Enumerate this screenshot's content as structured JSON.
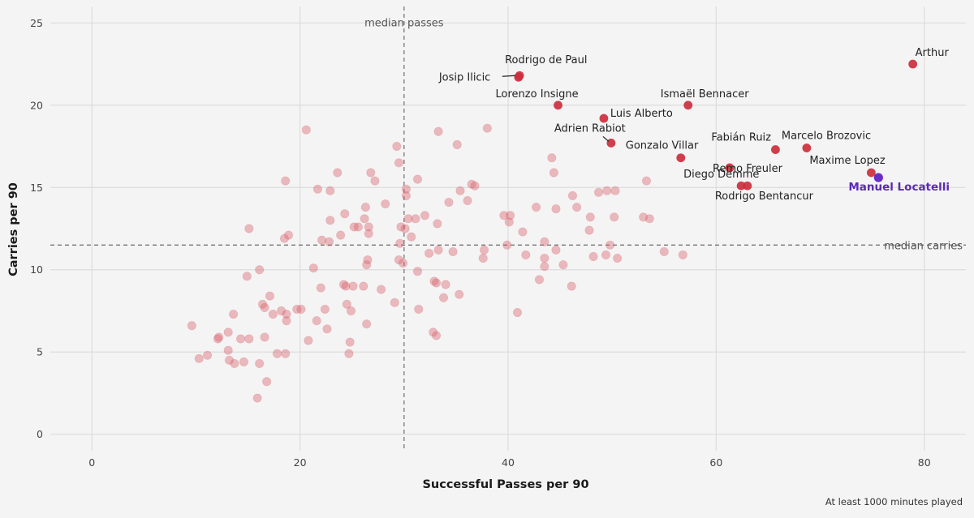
{
  "chart_data": {
    "type": "scatter",
    "xlabel": "Successful Passes per 90",
    "ylabel": "Carries per 90",
    "caption": "At least 1000 minutes played",
    "xlim": [
      -4,
      84
    ],
    "ylim": [
      -1,
      26
    ],
    "xticks": [
      0,
      20,
      40,
      60,
      80
    ],
    "yticks": [
      0,
      5,
      10,
      15,
      20,
      25
    ],
    "grid": true,
    "median_passes": {
      "value": 30,
      "label": "median passes"
    },
    "median_carries": {
      "value": 11.5,
      "label": "median carries"
    },
    "colors": {
      "background": "#f4f4f4",
      "others": "#d9646e",
      "labelled": "#cc2e3c",
      "highlight": "#6a2ec8"
    },
    "labelled_points": [
      {
        "name": "Arthur",
        "x": 78.9,
        "y": 22.5
      },
      {
        "name": "Rodrigo de Paul",
        "x": 41.1,
        "y": 21.8
      },
      {
        "name": "Josip Ilicic",
        "x": 41.0,
        "y": 21.7
      },
      {
        "name": "Lorenzo Insigne",
        "x": 44.8,
        "y": 20.0
      },
      {
        "name": "Ismaël Bennacer",
        "x": 57.3,
        "y": 20.0
      },
      {
        "name": "Luis Alberto",
        "x": 49.2,
        "y": 19.2
      },
      {
        "name": "Adrien Rabiot",
        "x": 49.9,
        "y": 17.7
      },
      {
        "name": "Gonzalo Villar",
        "x": 56.6,
        "y": 16.8
      },
      {
        "name": "Fabián Ruiz",
        "x": 65.7,
        "y": 17.3
      },
      {
        "name": "Marcelo Brozovic",
        "x": 68.7,
        "y": 17.4
      },
      {
        "name": "Remo Freuler",
        "x": 61.3,
        "y": 16.2
      },
      {
        "name": "Maxime Lopez",
        "x": 74.9,
        "y": 15.9
      },
      {
        "name": "Diego Demme",
        "x": 62.4,
        "y": 15.1
      },
      {
        "name": "Rodrigo Bentancur",
        "x": 63.0,
        "y": 15.1
      }
    ],
    "highlight_point": {
      "name": "Manuel Locatelli",
      "x": 75.6,
      "y": 15.6
    },
    "other_points": [
      [
        9.6,
        6.6
      ],
      [
        10.3,
        4.6
      ],
      [
        11.1,
        4.8
      ],
      [
        12.1,
        5.8
      ],
      [
        12.2,
        5.9
      ],
      [
        13.1,
        5.1
      ],
      [
        13.1,
        6.2
      ],
      [
        13.2,
        4.5
      ],
      [
        13.6,
        7.3
      ],
      [
        13.7,
        4.3
      ],
      [
        14.3,
        5.8
      ],
      [
        14.6,
        4.4
      ],
      [
        14.9,
        9.6
      ],
      [
        15.1,
        5.8
      ],
      [
        15.1,
        12.5
      ],
      [
        15.9,
        2.2
      ],
      [
        16.1,
        4.3
      ],
      [
        16.1,
        10.0
      ],
      [
        16.4,
        7.9
      ],
      [
        16.6,
        7.7
      ],
      [
        16.6,
        5.9
      ],
      [
        16.8,
        3.2
      ],
      [
        17.1,
        8.4
      ],
      [
        17.4,
        7.3
      ],
      [
        17.8,
        4.9
      ],
      [
        18.2,
        7.5
      ],
      [
        18.5,
        11.9
      ],
      [
        18.6,
        4.9
      ],
      [
        18.6,
        15.4
      ],
      [
        18.7,
        7.3
      ],
      [
        18.9,
        12.1
      ],
      [
        18.7,
        6.9
      ],
      [
        19.7,
        7.6
      ],
      [
        20.1,
        7.6
      ],
      [
        20.6,
        18.5
      ],
      [
        20.8,
        5.7
      ],
      [
        21.3,
        10.1
      ],
      [
        21.6,
        6.9
      ],
      [
        21.7,
        14.9
      ],
      [
        22.0,
        8.9
      ],
      [
        22.1,
        11.8
      ],
      [
        22.4,
        7.6
      ],
      [
        22.6,
        6.4
      ],
      [
        22.8,
        11.7
      ],
      [
        22.9,
        14.8
      ],
      [
        22.9,
        13.0
      ],
      [
        23.6,
        15.9
      ],
      [
        23.9,
        12.1
      ],
      [
        24.2,
        9.1
      ],
      [
        24.3,
        13.4
      ],
      [
        24.4,
        9.0
      ],
      [
        24.5,
        7.9
      ],
      [
        24.7,
        4.9
      ],
      [
        24.8,
        5.6
      ],
      [
        24.9,
        7.5
      ],
      [
        25.1,
        9.0
      ],
      [
        25.2,
        12.6
      ],
      [
        25.6,
        12.6
      ],
      [
        26.1,
        9.0
      ],
      [
        26.2,
        13.1
      ],
      [
        26.3,
        13.8
      ],
      [
        26.5,
        10.6
      ],
      [
        26.4,
        10.3
      ],
      [
        26.4,
        6.7
      ],
      [
        26.6,
        12.2
      ],
      [
        26.6,
        12.6
      ],
      [
        26.8,
        15.9
      ],
      [
        27.2,
        15.4
      ],
      [
        27.8,
        8.8
      ],
      [
        28.2,
        14.0
      ],
      [
        29.1,
        8.0
      ],
      [
        29.3,
        17.5
      ],
      [
        29.5,
        16.5
      ],
      [
        29.5,
        10.6
      ],
      [
        29.6,
        11.6
      ],
      [
        29.7,
        12.6
      ],
      [
        29.9,
        10.4
      ],
      [
        30.1,
        12.5
      ],
      [
        30.2,
        14.5
      ],
      [
        30.2,
        14.9
      ],
      [
        30.4,
        13.1
      ],
      [
        30.7,
        12.0
      ],
      [
        31.1,
        13.1
      ],
      [
        31.3,
        15.5
      ],
      [
        31.3,
        9.9
      ],
      [
        31.4,
        7.6
      ],
      [
        32.0,
        13.3
      ],
      [
        32.4,
        11.0
      ],
      [
        32.8,
        6.2
      ],
      [
        32.9,
        9.3
      ],
      [
        33.1,
        9.2
      ],
      [
        33.1,
        6.0
      ],
      [
        33.2,
        12.8
      ],
      [
        33.3,
        18.4
      ],
      [
        33.3,
        11.2
      ],
      [
        33.8,
        8.3
      ],
      [
        34.0,
        9.1
      ],
      [
        34.3,
        14.1
      ],
      [
        34.7,
        11.1
      ],
      [
        35.1,
        17.6
      ],
      [
        35.3,
        8.5
      ],
      [
        35.4,
        14.8
      ],
      [
        36.1,
        14.2
      ],
      [
        36.5,
        15.2
      ],
      [
        36.8,
        15.1
      ],
      [
        37.6,
        10.7
      ],
      [
        37.7,
        11.2
      ],
      [
        38.0,
        18.6
      ],
      [
        39.6,
        13.3
      ],
      [
        39.9,
        11.5
      ],
      [
        40.1,
        12.9
      ],
      [
        40.2,
        13.3
      ],
      [
        40.9,
        7.4
      ],
      [
        41.4,
        12.3
      ],
      [
        41.7,
        10.9
      ],
      [
        42.7,
        13.8
      ],
      [
        43.0,
        9.4
      ],
      [
        43.5,
        10.2
      ],
      [
        43.5,
        10.7
      ],
      [
        43.5,
        11.7
      ],
      [
        44.2,
        16.8
      ],
      [
        44.4,
        15.9
      ],
      [
        44.6,
        13.7
      ],
      [
        44.6,
        11.2
      ],
      [
        45.3,
        10.3
      ],
      [
        46.1,
        9.0
      ],
      [
        46.2,
        14.5
      ],
      [
        46.6,
        13.8
      ],
      [
        47.8,
        12.4
      ],
      [
        47.9,
        13.2
      ],
      [
        48.2,
        10.8
      ],
      [
        48.7,
        14.7
      ],
      [
        49.4,
        10.9
      ],
      [
        49.5,
        14.8
      ],
      [
        49.8,
        11.5
      ],
      [
        50.2,
        13.2
      ],
      [
        50.3,
        14.8
      ],
      [
        50.5,
        10.7
      ],
      [
        53.0,
        13.2
      ],
      [
        53.3,
        15.4
      ],
      [
        53.6,
        13.1
      ],
      [
        55.0,
        11.1
      ],
      [
        56.8,
        10.9
      ]
    ]
  }
}
